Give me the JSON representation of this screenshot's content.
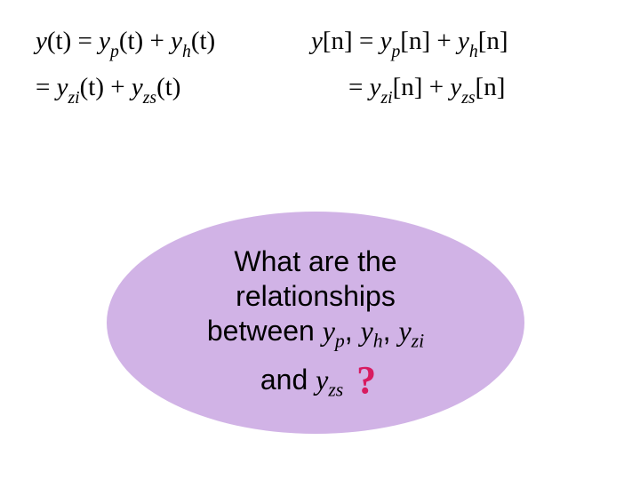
{
  "colors": {
    "background": "#ffffff",
    "text": "#000000",
    "bubble_fill": "#d1b3e6",
    "question_mark": "#d81b60"
  },
  "equations": {
    "left": {
      "line1_lhs": "y",
      "line1_arg": "(t)",
      "line1_eq": " = ",
      "line1_t1_base": "y",
      "line1_t1_sub": "p",
      "line1_t1_arg": "(t)",
      "line1_plus": " + ",
      "line1_t2_base": "y",
      "line1_t2_sub": "h",
      "line1_t2_arg": "(t)",
      "line2_eq": "= ",
      "line2_t1_base": "y",
      "line2_t1_sub": "zi",
      "line2_t1_arg": "(t)",
      "line2_plus": " + ",
      "line2_t2_base": "y",
      "line2_t2_sub": "zs",
      "line2_t2_arg": "(t)"
    },
    "right": {
      "line1_lhs": "y",
      "line1_arg": "[n]",
      "line1_eq": " = ",
      "line1_t1_base": "y",
      "line1_t1_sub": "p",
      "line1_t1_arg": "[n]",
      "line1_plus": " + ",
      "line1_t2_base": "y",
      "line1_t2_sub": "h",
      "line1_t2_arg": "[n]",
      "line2_eq": "= ",
      "line2_t1_base": "y",
      "line2_t1_sub": "zi",
      "line2_t1_arg": "[n]",
      "line2_plus": " + ",
      "line2_t2_base": "y",
      "line2_t2_sub": "zs",
      "line2_t2_arg": "[n]"
    }
  },
  "bubble": {
    "line1": "What are the",
    "line2": "relationships",
    "line3_a": "between ",
    "yp": "y",
    "yp_sub": "p",
    "sep1": ", ",
    "yh": "y",
    "yh_sub": "h",
    "sep2": ", ",
    "yzi": "y",
    "yzi_sub": "zi",
    "line4_a": "and ",
    "yzs": "y",
    "yzs_sub": "zs",
    "qmark": "?"
  }
}
